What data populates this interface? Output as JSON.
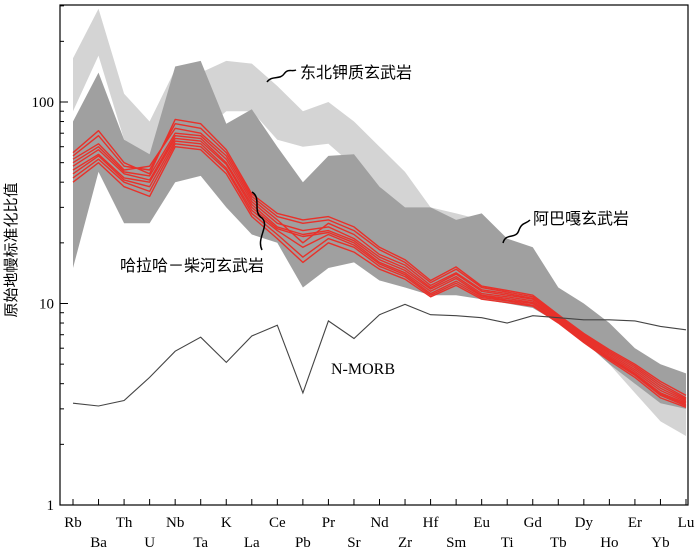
{
  "chart_data": {
    "type": "line",
    "ylabel": "原始地幔标准化比值",
    "yscale": "log",
    "ylim": [
      1,
      300
    ],
    "yticks": [
      1,
      10,
      100
    ],
    "categories": [
      "Rb",
      "Ba",
      "Th",
      "U",
      "Nb",
      "Ta",
      "K",
      "La",
      "Ce",
      "Pb",
      "Pr",
      "Sr",
      "Nd",
      "Zr",
      "Hf",
      "Sm",
      "Eu",
      "Ti",
      "Gd",
      "Tb",
      "Dy",
      "Ho",
      "Er",
      "Yb",
      "Lu"
    ],
    "fields": [
      {
        "name": "东北钾质玄武岩",
        "color": "#d4d4d4",
        "upper": [
          165,
          290,
          110,
          80,
          145,
          140,
          160,
          155,
          120,
          90,
          100,
          80,
          60,
          45,
          30,
          28,
          26,
          20,
          18,
          11,
          9,
          7,
          5,
          4,
          3.4
        ],
        "lower": [
          90,
          170,
          65,
          50,
          75,
          70,
          90,
          90,
          65,
          60,
          62,
          48,
          36,
          28,
          20,
          18,
          16,
          14,
          13,
          9,
          7,
          5,
          3.6,
          2.6,
          2.2
        ]
      },
      {
        "name": "阿巴嘎玄武岩",
        "color": "#a0a0a0",
        "upper": [
          80,
          140,
          65,
          55,
          150,
          160,
          78,
          92,
          60,
          40,
          54,
          55,
          38,
          30,
          30,
          26,
          28,
          21,
          19,
          12,
          10,
          8,
          6,
          5,
          4.5
        ],
        "lower": [
          15,
          45,
          25,
          25,
          40,
          43,
          30,
          22,
          20,
          12,
          15,
          16,
          13,
          12,
          11,
          11,
          10.5,
          10,
          9.5,
          8,
          6.5,
          5,
          4,
          3.2,
          3
        ]
      }
    ],
    "series": [
      {
        "name": "哈拉哈-柴河玄武岩",
        "values": [
          50,
          60,
          45,
          43,
          70,
          68,
          52,
          32,
          25,
          23,
          24,
          21,
          17,
          15,
          12,
          14,
          11.5,
          11,
          10.5,
          8.5,
          6.8,
          5.6,
          4.7,
          3.8,
          3.3
        ]
      },
      {
        "name": "",
        "values": [
          46,
          55,
          42,
          40,
          66,
          64,
          49,
          30,
          23.5,
          21.5,
          22.5,
          20,
          16,
          14.2,
          11.5,
          13.3,
          11,
          10.6,
          10.1,
          8.3,
          6.6,
          5.4,
          4.5,
          3.6,
          3.2
        ]
      },
      {
        "name": "",
        "values": [
          54,
          68,
          48,
          46,
          78,
          74,
          56,
          34,
          27,
          25,
          26,
          23,
          18.5,
          16,
          12.7,
          14.8,
          12,
          11.4,
          10.8,
          8.7,
          7,
          5.8,
          4.9,
          4,
          3.4
        ]
      },
      {
        "name": "",
        "values": [
          42,
          52,
          40,
          36,
          62,
          60,
          46,
          28,
          22,
          17,
          21,
          19,
          15.3,
          13.6,
          11,
          12.6,
          10.7,
          10.3,
          9.8,
          8.1,
          6.5,
          5.3,
          4.4,
          3.5,
          3.1
        ]
      },
      {
        "name": "",
        "values": [
          52,
          62,
          46,
          48,
          74,
          70,
          54,
          33,
          26,
          20,
          25,
          22,
          17.5,
          15.5,
          12.3,
          14.2,
          11.7,
          11.2,
          10.6,
          8.6,
          6.9,
          5.7,
          4.8,
          3.9,
          3.35
        ]
      },
      {
        "name": "",
        "values": [
          40,
          50,
          38,
          34,
          60,
          58,
          44,
          27,
          21,
          16,
          20,
          18,
          14.8,
          13.2,
          10.8,
          12.3,
          10.5,
          10.1,
          9.7,
          8,
          6.4,
          5.2,
          4.3,
          3.4,
          3.05
        ]
      },
      {
        "name": "",
        "values": [
          56,
          72,
          50,
          44,
          82,
          78,
          58,
          35,
          28,
          26,
          27,
          24,
          19,
          16.5,
          13,
          15.2,
          12.2,
          11.6,
          11,
          8.8,
          7.1,
          5.9,
          5,
          4.1,
          3.5
        ]
      },
      {
        "name": "",
        "values": [
          48,
          58,
          44,
          41,
          68,
          66,
          50,
          31,
          24,
          22,
          23,
          20.5,
          16.5,
          14.6,
          11.8,
          13.6,
          11.2,
          10.8,
          10.3,
          8.4,
          6.7,
          5.5,
          4.6,
          3.7,
          3.25
        ]
      },
      {
        "name": "",
        "values": [
          44,
          54,
          41,
          38,
          64,
          62,
          47,
          29,
          23,
          19,
          22,
          19.5,
          15.7,
          13.9,
          11.2,
          12.9,
          10.9,
          10.4,
          10,
          8.2,
          6.55,
          5.35,
          4.45,
          3.55,
          3.15
        ]
      }
    ],
    "reference": {
      "name": "N-MORB",
      "values": [
        3.2,
        3.1,
        3.3,
        4.3,
        5.8,
        6.8,
        5.1,
        6.9,
        7.8,
        3.6,
        8.2,
        6.7,
        8.8,
        9.9,
        8.8,
        8.7,
        8.5,
        8,
        8.7,
        8.5,
        8.3,
        8.3,
        8.2,
        7.7,
        7.4
      ]
    }
  },
  "annotations": {
    "dongbei": "东北钾质玄武岩",
    "abaga": "阿巴嘎玄武岩",
    "halaha": "哈拉哈－柴河玄武岩",
    "nmorb": "N-MORB"
  },
  "colors": {
    "red": "#e8312a",
    "dark_gray": "#a0a0a0",
    "light_gray": "#d4d4d4",
    "nmorb": "#444444"
  }
}
